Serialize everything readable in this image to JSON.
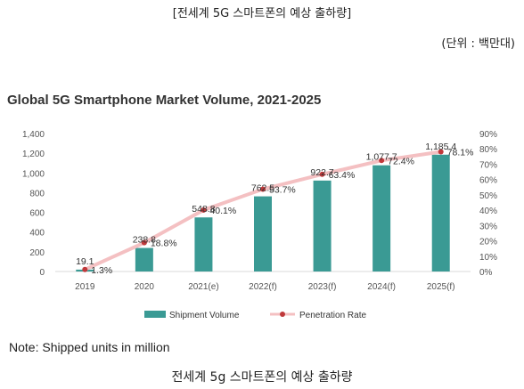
{
  "header": {
    "caption": "[전세계 5G 스마트폰의 예상 출하량]",
    "unit": "(단위 : 백만대)"
  },
  "footer": {
    "note": "Note: Shipped units in million",
    "caption": "전세계 5g 스마트폰의 예상 출하량"
  },
  "colors": {
    "bar": "#3a9a94",
    "line": "#f4c0c2",
    "marker": "#c0393b",
    "axis_text": "#555555",
    "gridline": "#d9d9d9"
  },
  "chart_data": {
    "type": "bar+line",
    "title": "Global 5G Smartphone Market Volume, 2021-2025",
    "categories": [
      "2019",
      "2020",
      "2021(e)",
      "2022(f)",
      "2023(f)",
      "2024(f)",
      "2025(f)"
    ],
    "series": [
      {
        "name": "Shipment Volume",
        "type": "bar",
        "axis": "left",
        "values": [
          19.1,
          238.8,
          548.8,
          762.5,
          922.7,
          1077.7,
          1185.4
        ],
        "labels": [
          "19.1",
          "238.8",
          "548.8",
          "762.5",
          "922.7",
          "1,077.7",
          "1,185.4"
        ]
      },
      {
        "name": "Penetration Rate",
        "type": "line",
        "axis": "right",
        "values": [
          1.3,
          18.8,
          40.1,
          53.7,
          63.4,
          72.4,
          78.1
        ],
        "labels": [
          "1.3%",
          "18.8%",
          "40.1%",
          "53.7%",
          "63.4%",
          "72.4%",
          "78.1%"
        ]
      }
    ],
    "y_left": {
      "range": [
        0,
        1400
      ],
      "ticks": [
        0,
        200,
        400,
        600,
        800,
        1000,
        1200,
        1400
      ],
      "tick_labels": [
        "0",
        "200",
        "400",
        "600",
        "800",
        "1,000",
        "1,200",
        "1,400"
      ]
    },
    "y_right": {
      "range": [
        0,
        90
      ],
      "ticks": [
        0,
        10,
        20,
        30,
        40,
        50,
        60,
        70,
        80,
        90
      ],
      "tick_labels": [
        "0%",
        "10%",
        "20%",
        "30%",
        "40%",
        "50%",
        "60%",
        "70%",
        "80%",
        "90%"
      ]
    },
    "legend_position": "bottom",
    "grid": false
  }
}
